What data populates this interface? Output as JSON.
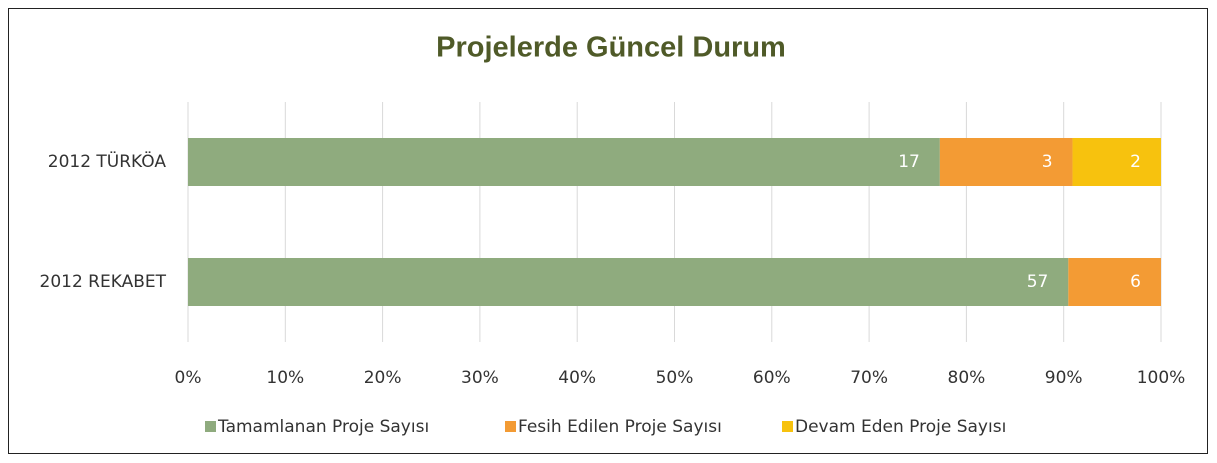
{
  "chart_data": {
    "type": "bar",
    "orientation": "horizontal",
    "stacking": "percent",
    "title": "Projelerde Güncel Durum",
    "categories": [
      "2012 TÜRKÖA",
      "2012 REKABET"
    ],
    "series": [
      {
        "name": "Tamamlanan Proje Sayısı",
        "color": "#8fab7e",
        "values": [
          17,
          57
        ]
      },
      {
        "name": "Fesih Edilen Proje Sayısı",
        "color": "#f39b34",
        "values": [
          3,
          6
        ]
      },
      {
        "name": "Devam Eden Proje Sayısı",
        "color": "#f7c20e",
        "values": [
          2,
          null
        ]
      }
    ],
    "xlim": [
      0,
      100
    ],
    "xticks": [
      {
        "value": 0,
        "label": "0%"
      },
      {
        "value": 10,
        "label": "10%"
      },
      {
        "value": 20,
        "label": "20%"
      },
      {
        "value": 30,
        "label": "30%"
      },
      {
        "value": 40,
        "label": "40%"
      },
      {
        "value": 50,
        "label": "50%"
      },
      {
        "value": 60,
        "label": "60%"
      },
      {
        "value": 70,
        "label": "70%"
      },
      {
        "value": 80,
        "label": "80%"
      },
      {
        "value": 90,
        "label": "90%"
      },
      {
        "value": 100,
        "label": "100%"
      }
    ],
    "grid": true,
    "legend": "bottom"
  }
}
